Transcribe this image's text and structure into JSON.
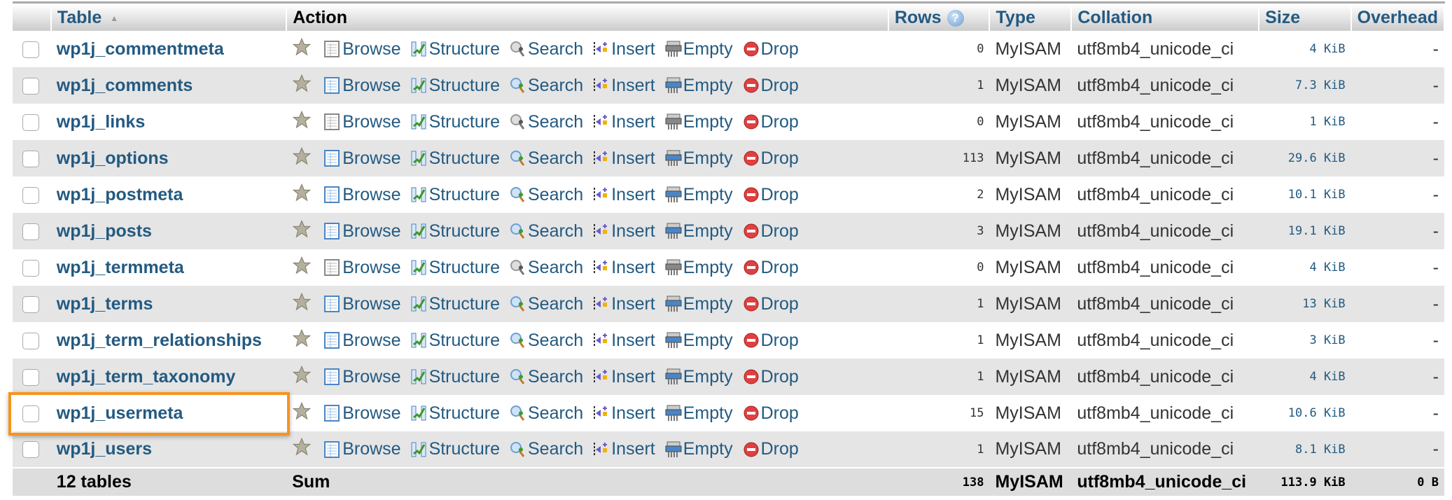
{
  "header": {
    "table": "Table",
    "action": "Action",
    "rows": "Rows",
    "type": "Type",
    "collation": "Collation",
    "size": "Size",
    "overhead": "Overhead",
    "help_icon": "?",
    "sort_icon": "▲"
  },
  "actions": {
    "browse": "Browse",
    "structure": "Structure",
    "search": "Search",
    "insert": "Insert",
    "empty": "Empty",
    "drop": "Drop"
  },
  "rows": [
    {
      "name": "wp1j_commentmeta",
      "rows": "0",
      "type": "MyISAM",
      "collation": "utf8mb4_unicode_ci",
      "size": "4 KiB",
      "overhead": "-"
    },
    {
      "name": "wp1j_comments",
      "rows": "1",
      "type": "MyISAM",
      "collation": "utf8mb4_unicode_ci",
      "size": "7.3 KiB",
      "overhead": "-"
    },
    {
      "name": "wp1j_links",
      "rows": "0",
      "type": "MyISAM",
      "collation": "utf8mb4_unicode_ci",
      "size": "1 KiB",
      "overhead": "-"
    },
    {
      "name": "wp1j_options",
      "rows": "113",
      "type": "MyISAM",
      "collation": "utf8mb4_unicode_ci",
      "size": "29.6 KiB",
      "overhead": "-"
    },
    {
      "name": "wp1j_postmeta",
      "rows": "2",
      "type": "MyISAM",
      "collation": "utf8mb4_unicode_ci",
      "size": "10.1 KiB",
      "overhead": "-"
    },
    {
      "name": "wp1j_posts",
      "rows": "3",
      "type": "MyISAM",
      "collation": "utf8mb4_unicode_ci",
      "size": "19.1 KiB",
      "overhead": "-"
    },
    {
      "name": "wp1j_termmeta",
      "rows": "0",
      "type": "MyISAM",
      "collation": "utf8mb4_unicode_ci",
      "size": "4 KiB",
      "overhead": "-"
    },
    {
      "name": "wp1j_terms",
      "rows": "1",
      "type": "MyISAM",
      "collation": "utf8mb4_unicode_ci",
      "size": "13 KiB",
      "overhead": "-"
    },
    {
      "name": "wp1j_term_relationships",
      "rows": "1",
      "type": "MyISAM",
      "collation": "utf8mb4_unicode_ci",
      "size": "3 KiB",
      "overhead": "-"
    },
    {
      "name": "wp1j_term_taxonomy",
      "rows": "1",
      "type": "MyISAM",
      "collation": "utf8mb4_unicode_ci",
      "size": "4 KiB",
      "overhead": "-"
    },
    {
      "name": "wp1j_usermeta",
      "rows": "15",
      "type": "MyISAM",
      "collation": "utf8mb4_unicode_ci",
      "size": "10.6 KiB",
      "overhead": "-",
      "highlighted": true
    },
    {
      "name": "wp1j_users",
      "rows": "1",
      "type": "MyISAM",
      "collation": "utf8mb4_unicode_ci",
      "size": "8.1 KiB",
      "overhead": "-"
    }
  ],
  "footer": {
    "count": "12 tables",
    "sum": "Sum",
    "rows": "138",
    "type": "MyISAM",
    "collation": "utf8mb4_unicode_ci",
    "size": "113.9 KiB",
    "overhead": "0 B"
  },
  "colors": {
    "link": "#235a81",
    "highlight": "#f7941d",
    "even_row": "#e5e5e5"
  }
}
